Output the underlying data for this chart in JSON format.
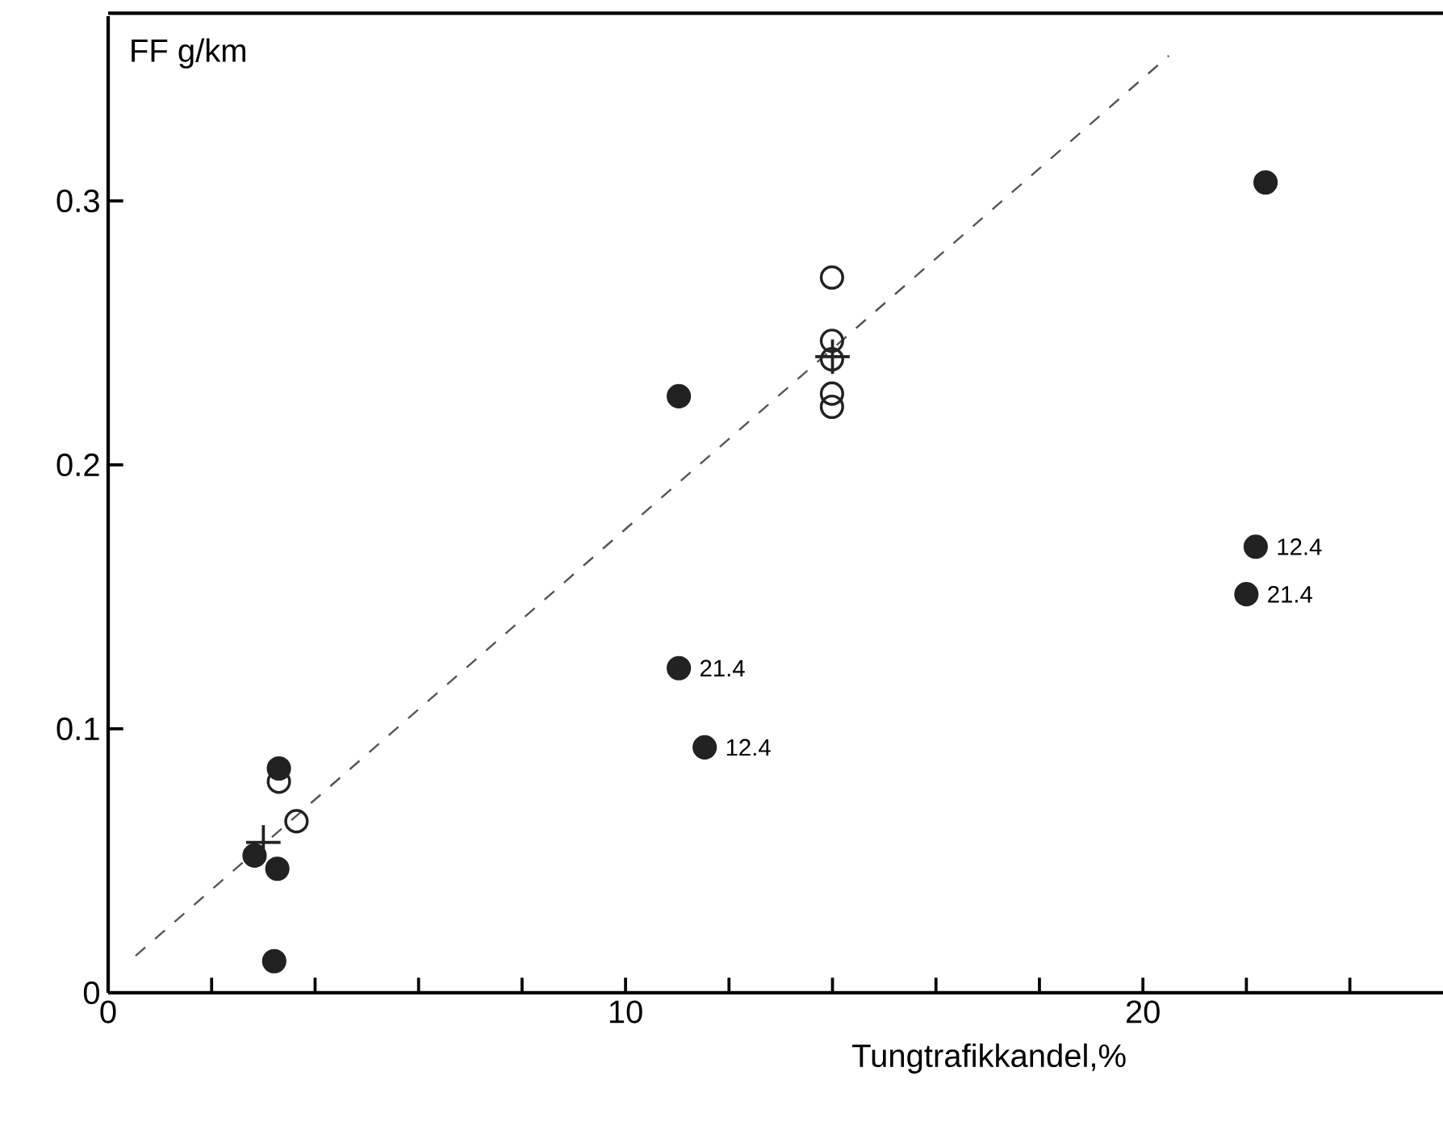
{
  "chart_data": {
    "type": "scatter",
    "xlabel": "Tungtrafikkandel,%",
    "ylabel": "FF g/km",
    "xlim": [
      0,
      25.8
    ],
    "ylim": [
      0,
      0.37
    ],
    "xticks": [
      0,
      {
        "value": 2,
        "label": null
      },
      {
        "value": 4,
        "label": null
      },
      {
        "value": 6,
        "label": null
      },
      {
        "value": 8,
        "label": null
      },
      10,
      {
        "value": 12,
        "label": null
      },
      {
        "value": 14,
        "label": null
      },
      {
        "value": 16,
        "label": null
      },
      {
        "value": 18,
        "label": null
      },
      20,
      {
        "value": 22,
        "label": null
      },
      {
        "value": 24,
        "label": null
      }
    ],
    "yticks": [
      0,
      0.1,
      0.2,
      0.3
    ],
    "series": [
      {
        "type": "scatter",
        "marker": "circle",
        "color": "#222222",
        "x": [
          2.83,
          3.27,
          3.21,
          3.3,
          11.03,
          11.03,
          11.53,
          22.18,
          22.0,
          22.37
        ],
        "values": [
          0.052,
          0.047,
          0.012,
          0.085,
          0.226,
          0.123,
          0.093,
          0.169,
          0.151,
          0.307
        ]
      },
      {
        "type": "scatter",
        "marker": "open circle",
        "color": "#222222",
        "x": [
          3.3,
          3.64,
          13.99,
          13.99,
          13.99,
          13.99,
          13.99
        ],
        "values": [
          0.08,
          0.065,
          0.271,
          0.247,
          0.24,
          0.227,
          0.222
        ]
      },
      {
        "type": "scatter",
        "marker": "cross",
        "color": "#222222",
        "x": [
          3.0,
          14.0
        ],
        "values": [
          0.057,
          0.241
        ]
      },
      {
        "type": "line",
        "marker": "none",
        "line_style": "dashed",
        "color": "#555555",
        "x": [
          0.53,
          20.5
        ],
        "values": [
          0.014,
          0.355
        ]
      }
    ],
    "annotations": [
      {
        "text": "21.4",
        "x": 11.03,
        "y": 0.123
      },
      {
        "text": "12.4",
        "x": 11.53,
        "y": 0.093
      },
      {
        "text": "12.4",
        "x": 22.18,
        "y": 0.169
      },
      {
        "text": "21.4",
        "x": 22.0,
        "y": 0.151
      }
    ]
  }
}
